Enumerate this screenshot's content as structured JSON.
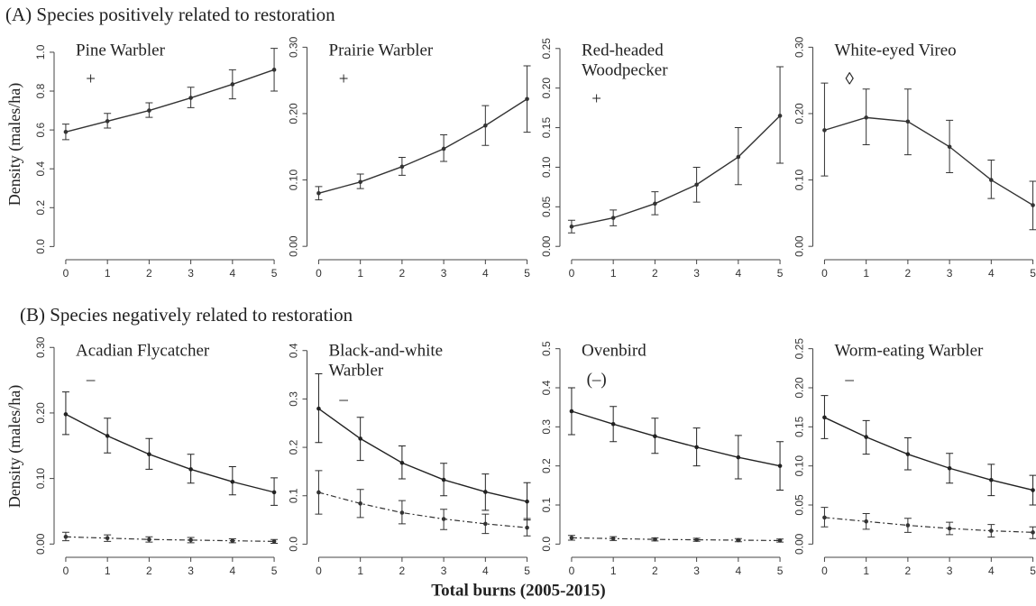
{
  "sections": [
    "(A) Species positively related to restoration",
    "(B) Species negatively related to restoration"
  ],
  "ylabel": "Density (males/ha)",
  "xlabel": "Total burns (2005-2015)",
  "chart_data": [
    {
      "type": "line",
      "title": [
        "Pine Warbler"
      ],
      "annotation": "+",
      "x": [
        0,
        1,
        2,
        3,
        4,
        5
      ],
      "xlim": [
        -0.15,
        5.15
      ],
      "xticks": [
        0,
        1,
        2,
        3,
        4,
        5
      ],
      "ylim": [
        -0.04,
        1.06
      ],
      "yticks": [
        {
          "value": 0,
          "label": "0.0"
        },
        {
          "value": 0.2,
          "label": "0.2"
        },
        {
          "value": 0.4,
          "label": "0.4"
        },
        {
          "value": 0.6,
          "label": "0.6"
        },
        {
          "value": 0.8,
          "label": "0.8"
        },
        {
          "value": 1.0,
          "label": "1.0"
        }
      ],
      "series": [
        {
          "color": "#333333",
          "dash": false,
          "values": [
            0.59,
            0.645,
            0.7,
            0.765,
            0.835,
            0.91
          ],
          "ci_low": [
            0.55,
            0.61,
            0.665,
            0.715,
            0.76,
            0.8
          ],
          "ci_high": [
            0.63,
            0.685,
            0.74,
            0.82,
            0.91,
            1.02
          ]
        }
      ]
    },
    {
      "type": "line",
      "title": [
        "Prairie Warbler"
      ],
      "annotation": "+",
      "x": [
        0,
        1,
        2,
        3,
        4,
        5
      ],
      "xlim": [
        -0.15,
        5.15
      ],
      "xticks": [
        0,
        1,
        2,
        3,
        4,
        5
      ],
      "ylim": [
        -0.012,
        0.31
      ],
      "yticks": [
        {
          "value": 0,
          "label": "0.00"
        },
        {
          "value": 0.1,
          "label": "0.10"
        },
        {
          "value": 0.2,
          "label": "0.20"
        },
        {
          "value": 0.3,
          "label": "0.30"
        }
      ],
      "series": [
        {
          "color": "#333333",
          "dash": false,
          "values": [
            0.08,
            0.097,
            0.12,
            0.147,
            0.182,
            0.222
          ],
          "ci_low": [
            0.07,
            0.087,
            0.107,
            0.128,
            0.152,
            0.172
          ],
          "ci_high": [
            0.09,
            0.109,
            0.134,
            0.168,
            0.212,
            0.272
          ]
        }
      ]
    },
    {
      "type": "line",
      "title": [
        "Red-headed",
        "Woodpecker"
      ],
      "annotation": "+",
      "x": [
        0,
        1,
        2,
        3,
        4,
        5
      ],
      "xlim": [
        -0.15,
        5.15
      ],
      "xticks": [
        0,
        1,
        2,
        3,
        4,
        5
      ],
      "ylim": [
        -0.01,
        0.26
      ],
      "yticks": [
        {
          "value": 0,
          "label": "0.00"
        },
        0.05,
        {
          "value": 0.1,
          "label": "0.10"
        },
        0.15,
        {
          "value": 0.2,
          "label": "0.20"
        },
        0.25
      ],
      "series": [
        {
          "color": "#333333",
          "dash": false,
          "values": [
            0.025,
            0.036,
            0.054,
            0.078,
            0.113,
            0.165
          ],
          "ci_low": [
            0.017,
            0.026,
            0.04,
            0.056,
            0.078,
            0.105
          ],
          "ci_high": [
            0.033,
            0.046,
            0.069,
            0.1,
            0.15,
            0.227
          ]
        }
      ]
    },
    {
      "type": "line",
      "title": [
        "White-eyed Vireo"
      ],
      "annotation": "◊",
      "x": [
        0,
        1,
        2,
        3,
        4,
        5
      ],
      "xlim": [
        -0.15,
        5.15
      ],
      "xticks": [
        0,
        1,
        2,
        3,
        4,
        5
      ],
      "ylim": [
        -0.012,
        0.31
      ],
      "yticks": [
        {
          "value": 0,
          "label": "0.00"
        },
        {
          "value": 0.1,
          "label": "0.10"
        },
        {
          "value": 0.2,
          "label": "0.20"
        },
        {
          "value": 0.3,
          "label": "0.30"
        }
      ],
      "series": [
        {
          "color": "#333333",
          "dash": false,
          "values": [
            0.175,
            0.194,
            0.188,
            0.15,
            0.1,
            0.062
          ],
          "ci_low": [
            0.106,
            0.153,
            0.138,
            0.111,
            0.072,
            0.025
          ],
          "ci_high": [
            0.246,
            0.237,
            0.237,
            0.19,
            0.13,
            0.098
          ]
        }
      ]
    },
    {
      "type": "line",
      "title": [
        "Acadian Flycatcher"
      ],
      "annotation": "–",
      "x": [
        0,
        1,
        2,
        3,
        4,
        5
      ],
      "xlim": [
        -0.15,
        5.15
      ],
      "xticks": [
        0,
        1,
        2,
        3,
        4,
        5
      ],
      "ylim": [
        -0.012,
        0.31
      ],
      "yticks": [
        {
          "value": 0,
          "label": "0.00"
        },
        {
          "value": 0.1,
          "label": "0.10"
        },
        {
          "value": 0.2,
          "label": "0.20"
        },
        {
          "value": 0.3,
          "label": "0.30"
        }
      ],
      "series": [
        {
          "color": "#222222",
          "dash": false,
          "values": [
            0.198,
            0.165,
            0.137,
            0.114,
            0.095,
            0.079
          ],
          "ci_low": [
            0.167,
            0.139,
            0.114,
            0.093,
            0.075,
            0.059
          ],
          "ci_high": [
            0.232,
            0.192,
            0.161,
            0.137,
            0.118,
            0.101
          ]
        },
        {
          "color": "#333333",
          "dash": true,
          "values": [
            0.011,
            0.009,
            0.007,
            0.006,
            0.005,
            0.004
          ],
          "ci_low": [
            0.005,
            0.004,
            0.003,
            0.002,
            0.002,
            0.001
          ],
          "ci_high": [
            0.018,
            0.014,
            0.011,
            0.01,
            0.008,
            0.007
          ]
        }
      ]
    },
    {
      "type": "line",
      "title": [
        "Black-and-white",
        "Warbler"
      ],
      "annotation": "–",
      "x": [
        0,
        1,
        2,
        3,
        4,
        5
      ],
      "xlim": [
        -0.15,
        5.15
      ],
      "xticks": [
        0,
        1,
        2,
        3,
        4,
        5
      ],
      "ylim": [
        -0.016,
        0.42
      ],
      "yticks": [
        {
          "value": 0,
          "label": "0.0"
        },
        0.1,
        0.2,
        0.3,
        0.4
      ],
      "series": [
        {
          "color": "#222222",
          "dash": false,
          "values": [
            0.28,
            0.218,
            0.168,
            0.133,
            0.108,
            0.088
          ],
          "ci_low": [
            0.21,
            0.173,
            0.135,
            0.1,
            0.07,
            0.05
          ],
          "ci_high": [
            0.352,
            0.262,
            0.203,
            0.167,
            0.145,
            0.127
          ]
        },
        {
          "color": "#333333",
          "dash": true,
          "values": [
            0.107,
            0.084,
            0.065,
            0.052,
            0.042,
            0.034
          ],
          "ci_low": [
            0.062,
            0.055,
            0.042,
            0.03,
            0.022,
            0.017
          ],
          "ci_high": [
            0.152,
            0.113,
            0.09,
            0.072,
            0.062,
            0.053
          ]
        }
      ]
    },
    {
      "type": "line",
      "title": [
        "Ovenbird"
      ],
      "annotation": "(–)",
      "x": [
        0,
        1,
        2,
        3,
        4,
        5
      ],
      "xlim": [
        -0.15,
        5.15
      ],
      "xticks": [
        0,
        1,
        2,
        3,
        4,
        5
      ],
      "ylim": [
        -0.02,
        0.52
      ],
      "yticks": [
        {
          "value": 0,
          "label": "0.0"
        },
        0.1,
        0.2,
        0.3,
        0.4,
        0.5
      ],
      "series": [
        {
          "color": "#222222",
          "dash": false,
          "values": [
            0.34,
            0.307,
            0.276,
            0.248,
            0.222,
            0.2
          ],
          "ci_low": [
            0.28,
            0.262,
            0.232,
            0.2,
            0.167,
            0.138
          ],
          "ci_high": [
            0.4,
            0.352,
            0.322,
            0.297,
            0.278,
            0.262
          ]
        },
        {
          "color": "#333333",
          "dash": true,
          "values": [
            0.016,
            0.014,
            0.012,
            0.011,
            0.01,
            0.009
          ],
          "ci_low": [
            0.01,
            0.009,
            0.008,
            0.007,
            0.006,
            0.005
          ],
          "ci_high": [
            0.022,
            0.019,
            0.016,
            0.015,
            0.014,
            0.013
          ]
        }
      ]
    },
    {
      "type": "line",
      "title": [
        "Worm-eating Warbler"
      ],
      "annotation": "–",
      "x": [
        0,
        1,
        2,
        3,
        4,
        5
      ],
      "xlim": [
        -0.15,
        5.15
      ],
      "xticks": [
        0,
        1,
        2,
        3,
        4,
        5
      ],
      "ylim": [
        -0.01,
        0.26
      ],
      "yticks": [
        {
          "value": 0,
          "label": "0.00"
        },
        0.05,
        {
          "value": 0.1,
          "label": "0.10"
        },
        0.15,
        {
          "value": 0.2,
          "label": "0.20"
        },
        0.25
      ],
      "series": [
        {
          "color": "#222222",
          "dash": false,
          "values": [
            0.162,
            0.137,
            0.115,
            0.097,
            0.082,
            0.069
          ],
          "ci_low": [
            0.135,
            0.115,
            0.095,
            0.078,
            0.062,
            0.05
          ],
          "ci_high": [
            0.19,
            0.158,
            0.136,
            0.116,
            0.102,
            0.088
          ]
        },
        {
          "color": "#333333",
          "dash": true,
          "values": [
            0.034,
            0.029,
            0.024,
            0.02,
            0.017,
            0.015
          ],
          "ci_low": [
            0.022,
            0.019,
            0.015,
            0.012,
            0.009,
            0.007
          ],
          "ci_high": [
            0.047,
            0.039,
            0.033,
            0.028,
            0.025,
            0.022
          ]
        }
      ]
    }
  ]
}
